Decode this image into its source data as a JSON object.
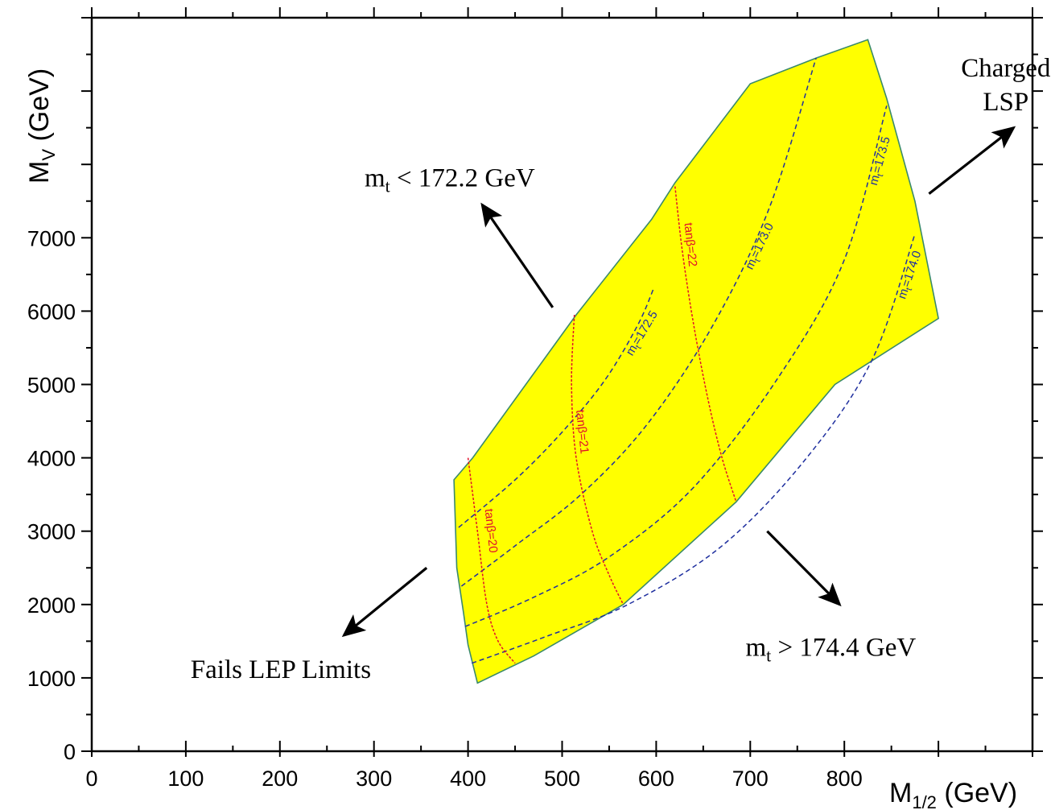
{
  "chart_data": {
    "type": "area",
    "title": "",
    "xlabel": {
      "main": "M",
      "sub": "1/2",
      "unit": " (GeV)"
    },
    "ylabel": {
      "main": "M",
      "sub": "V",
      "unit": " (GeV)"
    },
    "xlim": [
      0,
      1000
    ],
    "ylim": [
      0,
      10000
    ],
    "x_ticks": [
      0,
      100,
      200,
      300,
      400,
      500,
      600,
      700,
      800
    ],
    "y_ticks": [
      0,
      1000,
      2000,
      3000,
      4000,
      5000,
      6000,
      7000
    ],
    "x_tick_labels": [
      "0",
      "100",
      "200",
      "300",
      "400",
      "500",
      "600",
      "700",
      "800"
    ],
    "y_tick_labels": [
      "0",
      "1000",
      "2000",
      "3000",
      "4000",
      "5000",
      "6000",
      "7000"
    ],
    "x_minor_step": 50,
    "y_minor_step": 500,
    "region": {
      "fill": "#ffff00",
      "stroke": "#3a8a6a",
      "polygon": [
        [
          385,
          3700
        ],
        [
          405,
          4000
        ],
        [
          515,
          5950
        ],
        [
          595,
          7250
        ],
        [
          620,
          7750
        ],
        [
          700,
          9100
        ],
        [
          770,
          9450
        ],
        [
          825,
          9700
        ],
        [
          845,
          8900
        ],
        [
          875,
          7500
        ],
        [
          900,
          5900
        ],
        [
          790,
          5000
        ],
        [
          685,
          3400
        ],
        [
          565,
          2000
        ],
        [
          470,
          1300
        ],
        [
          410,
          930
        ],
        [
          400,
          1450
        ],
        [
          395,
          1900
        ],
        [
          388,
          2500
        ]
      ]
    },
    "mt_contours": {
      "color": "#1f2f9f",
      "curves": [
        {
          "label_main": "m",
          "label_sub": "t",
          "label_value": "=172.5",
          "points": [
            [
              390,
              3050
            ],
            [
              450,
              3700
            ],
            [
              500,
              4350
            ],
            [
              545,
              5050
            ],
            [
              580,
              5800
            ],
            [
              597,
              6300
            ]
          ]
        },
        {
          "label_main": "m",
          "label_sub": "t",
          "label_value": "=173.0",
          "points": [
            [
              393,
              2250
            ],
            [
              450,
              2800
            ],
            [
              520,
              3500
            ],
            [
              590,
              4450
            ],
            [
              660,
              5800
            ],
            [
              720,
              7400
            ],
            [
              770,
              9450
            ]
          ]
        },
        {
          "label_main": "m",
          "label_sub": "t",
          "label_value": "=173.5",
          "points": [
            [
              397,
              1700
            ],
            [
              470,
              2100
            ],
            [
              550,
              2650
            ],
            [
              640,
              3600
            ],
            [
              730,
              5100
            ],
            [
              800,
              6700
            ],
            [
              845,
              8800
            ]
          ]
        },
        {
          "label_main": "m",
          "label_sub": "t",
          "label_value": "=174.0",
          "points": [
            [
              404,
              1200
            ],
            [
              480,
              1550
            ],
            [
              570,
              2000
            ],
            [
              670,
              2800
            ],
            [
              760,
              4000
            ],
            [
              830,
              5350
            ],
            [
              875,
              7050
            ]
          ]
        }
      ]
    },
    "tanb_contours": {
      "color": "#e0102a",
      "curves": [
        {
          "label": "tanβ=20",
          "points": [
            [
              400,
              4000
            ],
            [
              410,
              3000
            ],
            [
              420,
              2000
            ],
            [
              432,
              1500
            ],
            [
              450,
              1200
            ]
          ]
        },
        {
          "label": "tanβ=21",
          "points": [
            [
              513,
              5950
            ],
            [
              510,
              5000
            ],
            [
              515,
              4000
            ],
            [
              532,
              3000
            ],
            [
              550,
              2400
            ],
            [
              565,
              2000
            ]
          ]
        },
        {
          "label": "tanβ=22",
          "points": [
            [
              620,
              7700
            ],
            [
              628,
              6800
            ],
            [
              640,
              5800
            ],
            [
              655,
              4800
            ],
            [
              670,
              4000
            ],
            [
              685,
              3400
            ]
          ]
        }
      ]
    },
    "annotations": [
      {
        "text_main": "m",
        "text_sub": "t",
        "text_rest": " < 172.2 GeV",
        "at": [
          290,
          7700
        ]
      },
      {
        "text_main": "m",
        "text_sub": "t",
        "text_rest": " > 174.4 GeV",
        "at": [
          695,
          1300
        ]
      },
      {
        "text": "Fails LEP Limits",
        "at": [
          105,
          1000
        ]
      },
      {
        "lines": [
          "Charged",
          "LSP"
        ],
        "at": [
          910,
          9200
        ]
      }
    ],
    "arrows": [
      {
        "from": [
          490,
          6050
        ],
        "to": [
          415,
          7450
        ]
      },
      {
        "from": [
          718,
          3000
        ],
        "to": [
          795,
          2000
        ]
      },
      {
        "from": [
          356,
          2500
        ],
        "to": [
          268,
          1580
        ]
      },
      {
        "from": [
          890,
          7600
        ],
        "to": [
          980,
          8500
        ]
      }
    ],
    "grid": false,
    "legend": "none"
  }
}
